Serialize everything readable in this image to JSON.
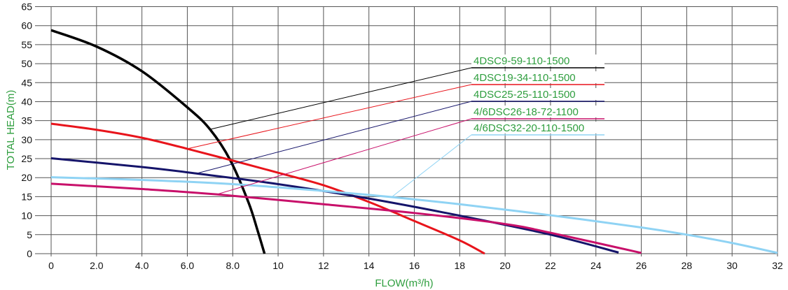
{
  "chart_data": {
    "type": "line",
    "xlabel": "FLOW(m³/h)",
    "ylabel": "TOTAL HEAD(m)",
    "xlim": [
      0,
      32
    ],
    "ylim": [
      0,
      65
    ],
    "xticks": [
      "0",
      "2.0",
      "4.0",
      "6.0",
      "8.0",
      "10",
      "12",
      "14",
      "16",
      "18",
      "20",
      "22",
      "24",
      "26",
      "28",
      "30",
      "32"
    ],
    "yticks": [
      "0",
      "5",
      "10",
      "15",
      "20",
      "25",
      "30",
      "35",
      "40",
      "45",
      "50",
      "55",
      "60",
      "65"
    ],
    "grid": true,
    "legend_placement": "center-right",
    "label_color": "#2e9e3e",
    "series": [
      {
        "name": "4DSC9-59-110-1500",
        "color": "#000000",
        "points": [
          [
            0,
            58.8
          ],
          [
            2,
            54.5
          ],
          [
            4,
            48
          ],
          [
            6,
            38.5
          ],
          [
            7,
            32.7
          ],
          [
            7.9,
            24.5
          ],
          [
            8.7,
            13.4
          ],
          [
            9.1,
            6
          ],
          [
            9.4,
            0
          ]
        ],
        "leader": [
          7,
          32.7
        ]
      },
      {
        "name": "4DSC19-34-110-1500",
        "color": "#e8141b",
        "points": [
          [
            0,
            34.2
          ],
          [
            2,
            32.6
          ],
          [
            4,
            30.5
          ],
          [
            6,
            27.6
          ],
          [
            8,
            24.5
          ],
          [
            10,
            21.3
          ],
          [
            12,
            18
          ],
          [
            14,
            13.6
          ],
          [
            16,
            8.6
          ],
          [
            18,
            3.5
          ],
          [
            19.1,
            0
          ]
        ],
        "leader": [
          6,
          27.6
        ]
      },
      {
        "name": "4DSC25-25-110-1500",
        "color": "#15146a",
        "points": [
          [
            0,
            25.1
          ],
          [
            4,
            22.8
          ],
          [
            6.4,
            21.1
          ],
          [
            10,
            18.3
          ],
          [
            14,
            14.5
          ],
          [
            18,
            10
          ],
          [
            22,
            5
          ],
          [
            25,
            0.3
          ]
        ],
        "leader": [
          6.4,
          21.1
        ]
      },
      {
        "name": "4/6DSC26-18-72-1100",
        "color": "#c8106a",
        "points": [
          [
            0,
            18.4
          ],
          [
            4,
            17
          ],
          [
            7.3,
            15.6
          ],
          [
            12,
            13
          ],
          [
            16,
            10.7
          ],
          [
            20,
            7.8
          ],
          [
            22,
            5.5
          ],
          [
            26,
            0.2
          ]
        ],
        "leader": [
          7.3,
          15.6
        ]
      },
      {
        "name": "4/6DSC32-20-110-1500",
        "color": "#8fd3f4",
        "points": [
          [
            0,
            20.1
          ],
          [
            4,
            19.4
          ],
          [
            8,
            18.3
          ],
          [
            12,
            16.5
          ],
          [
            15,
            14.9
          ],
          [
            18,
            13
          ],
          [
            22,
            10.1
          ],
          [
            26,
            6.9
          ],
          [
            28,
            5
          ],
          [
            30,
            2.8
          ],
          [
            32,
            0.2
          ]
        ],
        "leader": [
          15,
          14.9
        ]
      }
    ]
  }
}
